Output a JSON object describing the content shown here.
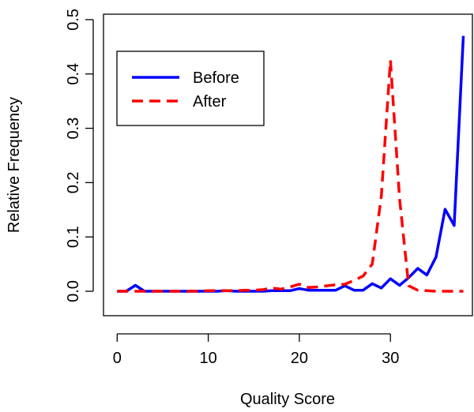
{
  "chart_data": {
    "type": "line",
    "title": "",
    "xlabel": "Quality Score",
    "ylabel": "Relative Frequency",
    "xlim": [
      -1.5,
      39
    ],
    "ylim": [
      -0.045,
      0.51
    ],
    "xticks": [
      0,
      10,
      20,
      30
    ],
    "yticks": [
      0.0,
      0.1,
      0.2,
      0.3,
      0.4,
      0.5
    ],
    "xtick_labels": [
      "0",
      "10",
      "20",
      "30"
    ],
    "ytick_labels": [
      "0.0",
      "0.1",
      "0.2",
      "0.3",
      "0.4",
      "0.5"
    ],
    "legend": "top-left",
    "grid": false,
    "series": [
      {
        "name": "Before",
        "color": "#0000ff",
        "dash": "solid",
        "x": [
          0,
          1,
          2,
          3,
          4,
          5,
          6,
          7,
          8,
          9,
          10,
          11,
          12,
          13,
          14,
          15,
          16,
          17,
          18,
          19,
          20,
          21,
          22,
          23,
          24,
          25,
          26,
          27,
          28,
          29,
          30,
          31,
          32,
          33,
          34,
          35,
          36,
          37,
          38
        ],
        "y": [
          0.0,
          0.0,
          0.011,
          0.0,
          0.0,
          0.0,
          0.0,
          0.0,
          0.0,
          0.0,
          0.0,
          0.0,
          0.001,
          0.0,
          0.0,
          0.0,
          0.0,
          0.001,
          0.001,
          0.001,
          0.005,
          0.002,
          0.002,
          0.002,
          0.002,
          0.01,
          0.002,
          0.002,
          0.014,
          0.006,
          0.023,
          0.011,
          0.025,
          0.042,
          0.03,
          0.063,
          0.151,
          0.121,
          0.47
        ]
      },
      {
        "name": "After",
        "color": "#ff0000",
        "dash": "dashed",
        "x": [
          0,
          1,
          2,
          3,
          4,
          5,
          6,
          7,
          8,
          9,
          10,
          11,
          12,
          13,
          14,
          15,
          16,
          17,
          18,
          19,
          20,
          21,
          22,
          23,
          24,
          25,
          26,
          27,
          28,
          29,
          30,
          31,
          32,
          33,
          34,
          35,
          36,
          37,
          38
        ],
        "y": [
          0.0,
          0.0,
          0.0,
          0.0,
          0.0,
          0.0,
          0.0,
          0.0,
          0.0,
          0.0,
          0.001,
          0.001,
          0.001,
          0.001,
          0.002,
          0.002,
          0.003,
          0.006,
          0.004,
          0.008,
          0.013,
          0.007,
          0.008,
          0.01,
          0.012,
          0.013,
          0.02,
          0.028,
          0.05,
          0.175,
          0.425,
          0.17,
          0.01,
          0.002,
          0.001,
          0.0,
          0.0,
          0.0,
          0.0
        ]
      }
    ]
  }
}
